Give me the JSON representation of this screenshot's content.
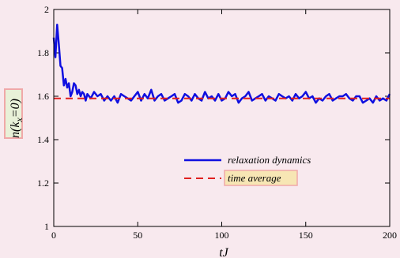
{
  "chart_data": {
    "type": "line",
    "title": "",
    "xlabel": "tJ",
    "ylabel": "n(k_x=0)",
    "xlim": [
      0,
      200
    ],
    "ylim": [
      1,
      2
    ],
    "xticks": [
      0,
      50,
      100,
      150,
      200
    ],
    "yticks": [
      1,
      1.2,
      1.4,
      1.6,
      1.8,
      2
    ],
    "xtick_labels": [
      "0",
      "50",
      "100",
      "150",
      "200"
    ],
    "ytick_labels": [
      "1",
      "1.2",
      "1.4",
      "1.6",
      "1.8",
      "2"
    ],
    "grid": false,
    "legend_position": "lower-right",
    "series": [
      {
        "name": "relaxation dynamics",
        "color": "#1010e0",
        "style": "solid",
        "x": [
          0,
          1,
          2,
          3,
          4,
          5,
          6,
          7,
          8,
          9,
          10,
          11,
          12,
          13,
          14,
          15,
          16,
          17,
          18,
          19,
          20,
          22,
          24,
          26,
          28,
          30,
          32,
          34,
          36,
          38,
          40,
          42,
          44,
          46,
          48,
          50,
          52,
          54,
          56,
          58,
          60,
          62,
          64,
          66,
          68,
          70,
          72,
          74,
          76,
          78,
          80,
          82,
          84,
          86,
          88,
          90,
          92,
          94,
          96,
          98,
          100,
          102,
          104,
          106,
          108,
          110,
          112,
          114,
          116,
          118,
          120,
          122,
          124,
          126,
          128,
          130,
          132,
          134,
          136,
          138,
          140,
          142,
          144,
          146,
          148,
          150,
          152,
          154,
          156,
          158,
          160,
          162,
          164,
          166,
          168,
          170,
          172,
          174,
          176,
          178,
          180,
          182,
          184,
          186,
          188,
          190,
          192,
          194,
          196,
          198,
          200
        ],
        "y": [
          1.87,
          1.78,
          1.93,
          1.84,
          1.74,
          1.73,
          1.65,
          1.68,
          1.64,
          1.66,
          1.6,
          1.62,
          1.66,
          1.65,
          1.61,
          1.63,
          1.6,
          1.62,
          1.61,
          1.58,
          1.61,
          1.59,
          1.62,
          1.6,
          1.61,
          1.58,
          1.6,
          1.58,
          1.6,
          1.57,
          1.61,
          1.6,
          1.59,
          1.58,
          1.6,
          1.62,
          1.58,
          1.61,
          1.59,
          1.63,
          1.58,
          1.6,
          1.61,
          1.58,
          1.59,
          1.6,
          1.61,
          1.57,
          1.58,
          1.61,
          1.6,
          1.58,
          1.61,
          1.59,
          1.58,
          1.62,
          1.59,
          1.6,
          1.58,
          1.61,
          1.58,
          1.59,
          1.62,
          1.6,
          1.61,
          1.57,
          1.59,
          1.6,
          1.62,
          1.58,
          1.59,
          1.6,
          1.61,
          1.58,
          1.6,
          1.59,
          1.58,
          1.61,
          1.6,
          1.59,
          1.6,
          1.58,
          1.61,
          1.59,
          1.6,
          1.62,
          1.59,
          1.6,
          1.57,
          1.59,
          1.58,
          1.6,
          1.61,
          1.58,
          1.59,
          1.6,
          1.6,
          1.61,
          1.59,
          1.58,
          1.6,
          1.6,
          1.57,
          1.58,
          1.59,
          1.57,
          1.6,
          1.58,
          1.59,
          1.58,
          1.61
        ]
      },
      {
        "name": "time average",
        "color": "#e02020",
        "style": "dashed",
        "x": [
          0,
          200
        ],
        "y": [
          1.59,
          1.59
        ]
      }
    ]
  }
}
